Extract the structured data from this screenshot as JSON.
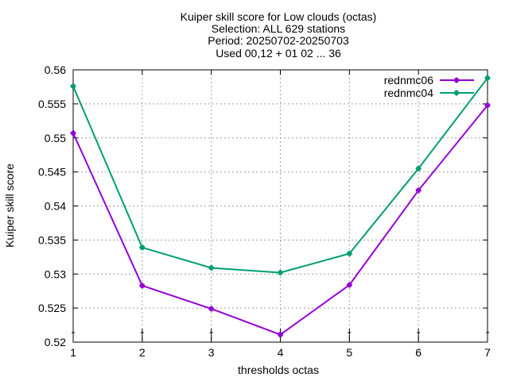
{
  "chart_data": {
    "type": "line",
    "title_lines": [
      "Kuiper skill score  for Low clouds (octas)",
      "Selection: ALL    629 stations",
      "Period: 20250702-20250703",
      "Used 00,12 + 01 02 ... 36"
    ],
    "xlabel": "thresholds octas",
    "ylabel": "Kuiper skill score",
    "x": [
      1,
      2,
      3,
      4,
      5,
      6,
      7
    ],
    "xlim": [
      1,
      7
    ],
    "ylim": [
      0.52,
      0.56
    ],
    "xticks": [
      "1",
      "2",
      "3",
      "4",
      "5",
      "6",
      "7"
    ],
    "yticks": [
      "0.52",
      "0.525",
      "0.53",
      "0.535",
      "0.54",
      "0.545",
      "0.55",
      "0.555",
      "0.56"
    ],
    "grid": true,
    "legend_position": "top-right",
    "series": [
      {
        "name": "rednmc06",
        "color": "#9400d3",
        "values": [
          0.5507,
          0.5283,
          0.5249,
          0.5211,
          0.5284,
          0.5423,
          0.5548
        ]
      },
      {
        "name": "rednmc04",
        "color": "#009e73",
        "values": [
          0.5576,
          0.5339,
          0.5309,
          0.5302,
          0.533,
          0.5455,
          0.5588
        ]
      }
    ]
  }
}
